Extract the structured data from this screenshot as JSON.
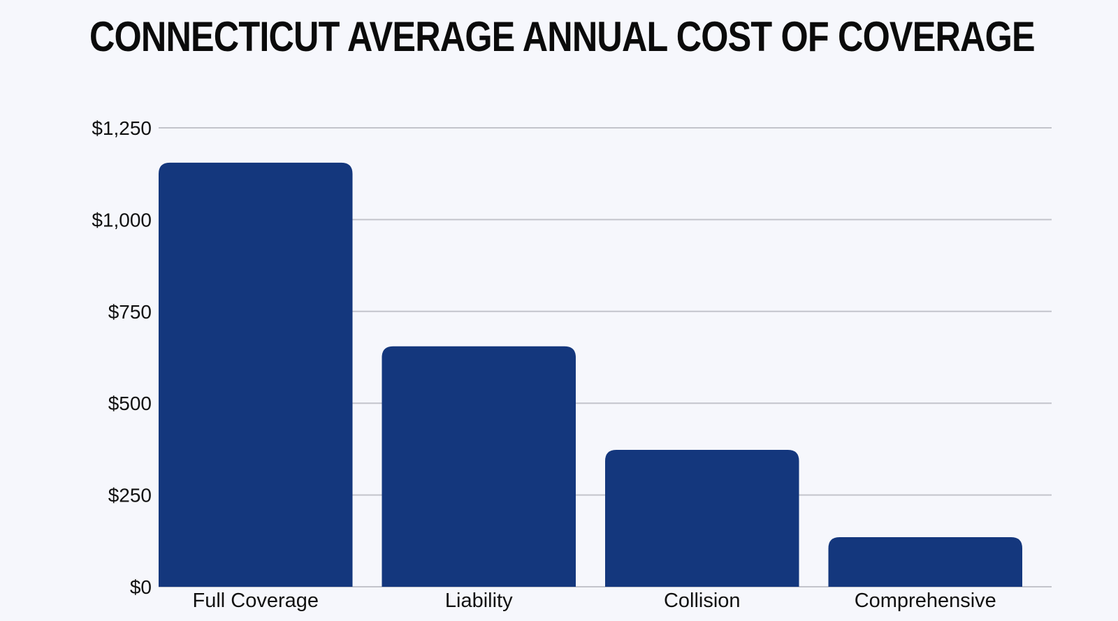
{
  "chart_data": {
    "type": "bar",
    "title": "CONNECTICUT AVERAGE ANNUAL COST OF COVERAGE",
    "xlabel": "",
    "ylabel": "",
    "categories": [
      "Full Coverage",
      "Liability",
      "Collision",
      "Comprehensive"
    ],
    "values": [
      1155,
      655,
      373,
      135
    ],
    "ylim": [
      0,
      1250
    ],
    "yticks": [
      0,
      250,
      500,
      750,
      1000,
      1250
    ],
    "ytick_labels": [
      "$0",
      "$250",
      "$500",
      "$750",
      "$1,000",
      "$1,250"
    ],
    "grid": true,
    "legend": "none",
    "bar_color": "#14377d",
    "grid_color": "#c3c4cb"
  }
}
